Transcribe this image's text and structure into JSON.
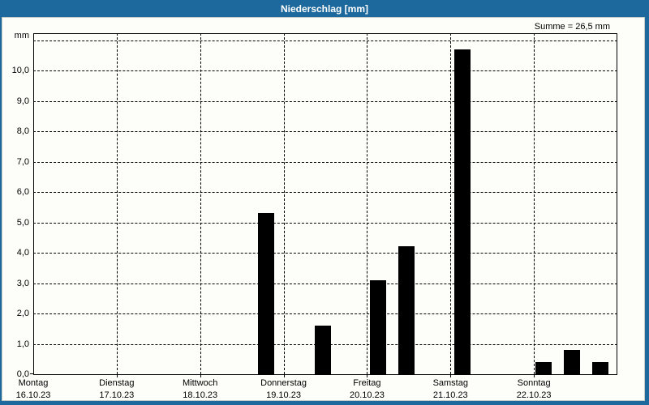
{
  "window": {
    "title": "Niederschlag [mm]"
  },
  "colors": {
    "titlebar_blue": "#1d689c",
    "window_border_blue": "#1d689c",
    "panel_bg": "#fdfdfa",
    "bar_black": "#000000",
    "grid_black": "#000000",
    "title_text": "#ffffff"
  },
  "chart_data": {
    "type": "bar",
    "title": "Niederschlag [mm]",
    "ylabel": "mm",
    "sum_text": "Summe = 26,5 mm",
    "sum_mm": 26.5,
    "ylim": [
      0,
      11.2
    ],
    "ytick_step": 1.0,
    "ytick_labels": [
      "0,0",
      "1,0",
      "2,0",
      "3,0",
      "4,0",
      "5,0",
      "6,0",
      "7,0",
      "8,0",
      "9,0",
      "10,0"
    ],
    "grid": true,
    "gridline_values": [
      1,
      2,
      3,
      4,
      5,
      6,
      7,
      8,
      9,
      10,
      11
    ],
    "x_range_days": [
      0,
      7
    ],
    "x_days": [
      {
        "name": "Montag",
        "date": "16.10.23"
      },
      {
        "name": "Dienstag",
        "date": "17.10.23"
      },
      {
        "name": "Mittwoch",
        "date": "18.10.23"
      },
      {
        "name": "Donnerstag",
        "date": "19.10.23"
      },
      {
        "name": "Freitag",
        "date": "20.10.23"
      },
      {
        "name": "Samstag",
        "date": "21.10.23"
      },
      {
        "name": "Sonntag",
        "date": "22.10.23"
      }
    ],
    "bars": [
      {
        "x_days": 2.79,
        "value": 5.3
      },
      {
        "x_days": 3.47,
        "value": 1.6
      },
      {
        "x_days": 4.13,
        "value": 3.1
      },
      {
        "x_days": 4.47,
        "value": 4.2
      },
      {
        "x_days": 5.14,
        "value": 10.7
      },
      {
        "x_days": 6.12,
        "value": 0.4
      },
      {
        "x_days": 6.46,
        "value": 0.8
      },
      {
        "x_days": 6.8,
        "value": 0.4
      }
    ]
  }
}
